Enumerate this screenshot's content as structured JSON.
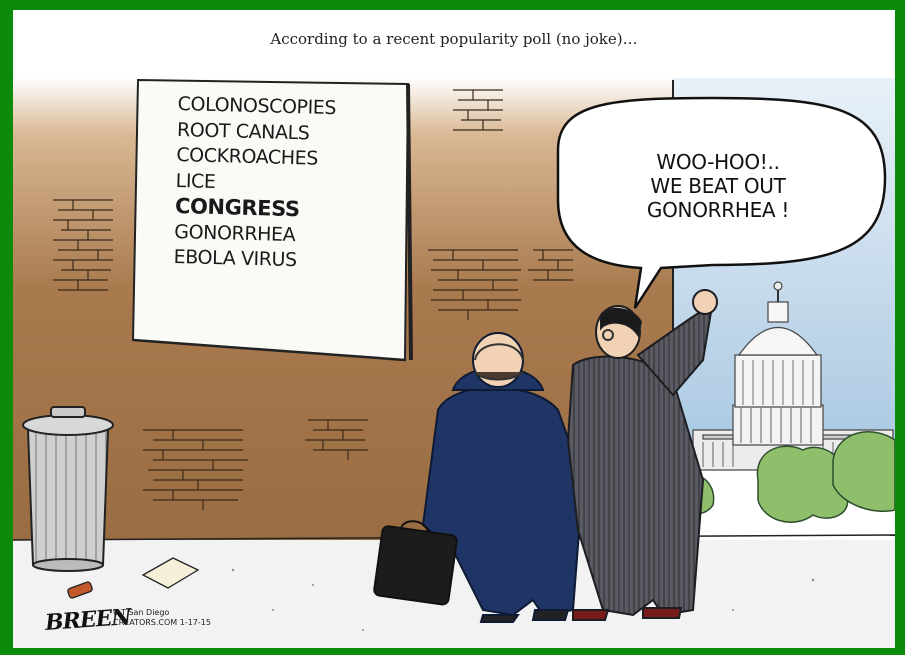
{
  "caption": "According to a recent popularity poll (no joke)…",
  "poll_list": [
    "COLONOSCOPIES",
    "ROOT CANALS",
    "COCKROACHES",
    "LICE",
    "CONGRESS",
    "GONORRHEA",
    "EBOLA VIRUS"
  ],
  "poll_highlight": "CONGRESS",
  "speech_bubble": [
    "WOO-HOO!..",
    "WE BEAT OUT",
    "GONORRHEA !"
  ],
  "signature": "BREEN",
  "credit": [
    "U-T San Diego",
    "CREATORS.COM 1-17-15"
  ],
  "colors": {
    "frame": "#0b8a0b",
    "wall": "#a97a4e",
    "sky": "#b7d2e8",
    "suit_left": "#1f3566",
    "suit_right": "#54555c"
  }
}
